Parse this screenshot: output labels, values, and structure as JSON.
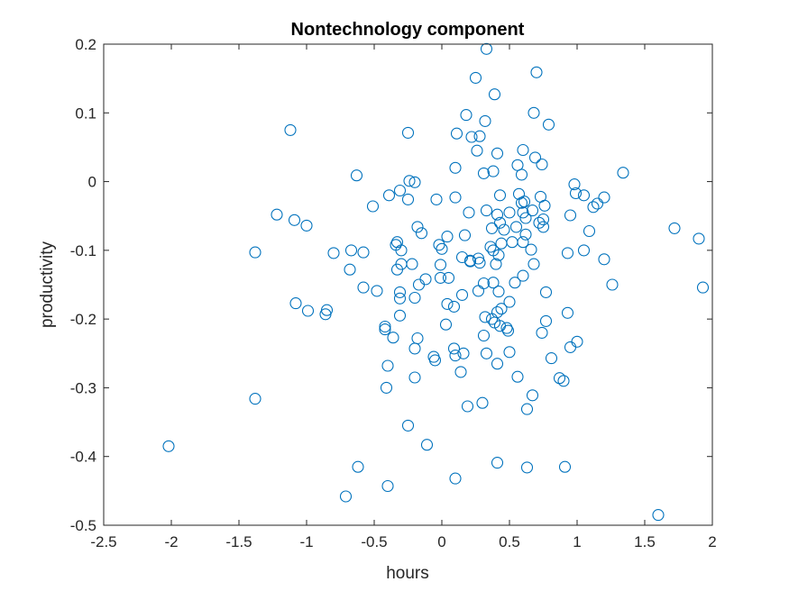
{
  "chart_data": {
    "type": "scatter",
    "title": "Nontechnology component",
    "xlabel": "hours",
    "ylabel": "productivity",
    "xlim": [
      -2.5,
      2
    ],
    "ylim": [
      -0.5,
      0.2
    ],
    "xticks": [
      "-2.5",
      "-2",
      "-1.5",
      "-1",
      "-0.5",
      "0",
      "0.5",
      "1",
      "1.5",
      "2"
    ],
    "yticks": [
      "0.2",
      "0.1",
      "0",
      "-0.1",
      "-0.2",
      "-0.3",
      "-0.4",
      "-0.5"
    ],
    "grid": false,
    "marker": "circle",
    "color": "#0072BD",
    "points": [
      [
        0.33,
        0.193
      ],
      [
        0.39,
        0.127
      ],
      [
        0.25,
        0.151
      ],
      [
        0.7,
        0.159
      ],
      [
        0.18,
        0.097
      ],
      [
        0.32,
        0.088
      ],
      [
        0.68,
        0.1
      ],
      [
        0.79,
        0.083
      ],
      [
        -1.12,
        0.075
      ],
      [
        -0.25,
        0.071
      ],
      [
        0.11,
        0.07
      ],
      [
        0.28,
        0.066
      ],
      [
        0.22,
        0.065
      ],
      [
        0.6,
        0.046
      ],
      [
        0.26,
        0.045
      ],
      [
        0.41,
        0.041
      ],
      [
        0.69,
        0.035
      ],
      [
        0.74,
        0.025
      ],
      [
        0.56,
        0.024
      ],
      [
        0.1,
        0.02
      ],
      [
        0.38,
        0.015
      ],
      [
        0.31,
        0.012
      ],
      [
        0.59,
        0.01
      ],
      [
        1.34,
        0.013
      ],
      [
        -0.63,
        0.009
      ],
      [
        0.98,
        -0.004
      ],
      [
        -0.24,
        0.001
      ],
      [
        -0.2,
        -0.001
      ],
      [
        -0.31,
        -0.013
      ],
      [
        -0.39,
        -0.02
      ],
      [
        0.43,
        -0.02
      ],
      [
        0.57,
        -0.018
      ],
      [
        0.73,
        -0.022
      ],
      [
        0.99,
        -0.017
      ],
      [
        1.05,
        -0.02
      ],
      [
        1.2,
        -0.023
      ],
      [
        -0.25,
        -0.026
      ],
      [
        -0.04,
        -0.026
      ],
      [
        0.1,
        -0.023
      ],
      [
        0.61,
        -0.029
      ],
      [
        0.59,
        -0.031
      ],
      [
        1.15,
        -0.032
      ],
      [
        1.12,
        -0.037
      ],
      [
        0.76,
        -0.035
      ],
      [
        -0.51,
        -0.036
      ],
      [
        0.33,
        -0.042
      ],
      [
        0.2,
        -0.045
      ],
      [
        0.5,
        -0.045
      ],
      [
        0.6,
        -0.045
      ],
      [
        0.67,
        -0.042
      ],
      [
        0.41,
        -0.048
      ],
      [
        0.95,
        -0.049
      ],
      [
        0.75,
        -0.055
      ],
      [
        0.62,
        -0.053
      ],
      [
        -1.22,
        -0.048
      ],
      [
        -1.09,
        -0.056
      ],
      [
        -1.0,
        -0.064
      ],
      [
        -0.18,
        -0.066
      ],
      [
        0.43,
        -0.06
      ],
      [
        0.37,
        -0.068
      ],
      [
        0.46,
        -0.07
      ],
      [
        0.55,
        -0.066
      ],
      [
        0.72,
        -0.06
      ],
      [
        0.75,
        -0.066
      ],
      [
        1.09,
        -0.072
      ],
      [
        1.72,
        -0.068
      ],
      [
        -0.15,
        -0.075
      ],
      [
        0.04,
        -0.08
      ],
      [
        0.17,
        -0.078
      ],
      [
        0.62,
        -0.077
      ],
      [
        1.9,
        -0.083
      ],
      [
        -0.33,
        -0.088
      ],
      [
        0.6,
        -0.088
      ],
      [
        0.52,
        -0.088
      ],
      [
        0.44,
        -0.09
      ],
      [
        -0.34,
        -0.092
      ],
      [
        -0.02,
        -0.092
      ],
      [
        0.36,
        -0.095
      ],
      [
        0.38,
        -0.1
      ],
      [
        -0.67,
        -0.1
      ],
      [
        -0.58,
        -0.103
      ],
      [
        -0.3,
        -0.1
      ],
      [
        0.0,
        -0.098
      ],
      [
        0.66,
        -0.099
      ],
      [
        0.93,
        -0.104
      ],
      [
        1.05,
        -0.1
      ],
      [
        -1.38,
        -0.103
      ],
      [
        -0.8,
        -0.104
      ],
      [
        0.42,
        -0.107
      ],
      [
        0.15,
        -0.11
      ],
      [
        0.27,
        -0.112
      ],
      [
        0.28,
        -0.118
      ],
      [
        -0.3,
        -0.12
      ],
      [
        -0.22,
        -0.12
      ],
      [
        0.21,
        -0.116
      ],
      [
        0.21,
        -0.115
      ],
      [
        0.68,
        -0.12
      ],
      [
        1.2,
        -0.113
      ],
      [
        -0.01,
        -0.121
      ],
      [
        -0.33,
        -0.128
      ],
      [
        -0.68,
        -0.128
      ],
      [
        0.4,
        -0.12
      ],
      [
        0.6,
        -0.137
      ],
      [
        0.05,
        -0.14
      ],
      [
        -0.01,
        -0.14
      ],
      [
        0.38,
        -0.147
      ],
      [
        -0.12,
        -0.142
      ],
      [
        0.31,
        -0.148
      ],
      [
        -0.17,
        -0.15
      ],
      [
        0.54,
        -0.147
      ],
      [
        1.26,
        -0.15
      ],
      [
        -0.58,
        -0.154
      ],
      [
        -0.48,
        -0.159
      ],
      [
        -0.31,
        -0.161
      ],
      [
        0.27,
        -0.159
      ],
      [
        0.15,
        -0.165
      ],
      [
        0.42,
        -0.16
      ],
      [
        0.77,
        -0.161
      ],
      [
        1.93,
        -0.154
      ],
      [
        -0.31,
        -0.17
      ],
      [
        -0.2,
        -0.169
      ],
      [
        0.04,
        -0.178
      ],
      [
        0.09,
        -0.182
      ],
      [
        0.44,
        -0.185
      ],
      [
        0.5,
        -0.175
      ],
      [
        -1.08,
        -0.177
      ],
      [
        -0.99,
        -0.188
      ],
      [
        -0.85,
        -0.187
      ],
      [
        -0.86,
        -0.193
      ],
      [
        -0.31,
        -0.195
      ],
      [
        0.32,
        -0.197
      ],
      [
        0.41,
        -0.19
      ],
      [
        0.93,
        -0.191
      ],
      [
        0.37,
        -0.2
      ],
      [
        0.39,
        -0.205
      ],
      [
        -0.42,
        -0.211
      ],
      [
        0.03,
        -0.208
      ],
      [
        0.43,
        -0.21
      ],
      [
        0.48,
        -0.213
      ],
      [
        0.49,
        -0.217
      ],
      [
        0.77,
        -0.203
      ],
      [
        0.74,
        -0.22
      ],
      [
        -0.42,
        -0.215
      ],
      [
        -0.36,
        -0.227
      ],
      [
        -0.18,
        -0.228
      ],
      [
        0.31,
        -0.224
      ],
      [
        -0.2,
        -0.243
      ],
      [
        0.09,
        -0.243
      ],
      [
        0.16,
        -0.25
      ],
      [
        0.5,
        -0.248
      ],
      [
        0.95,
        -0.241
      ],
      [
        0.33,
        -0.25
      ],
      [
        1.0,
        -0.233
      ],
      [
        0.1,
        -0.253
      ],
      [
        -0.06,
        -0.255
      ],
      [
        -0.05,
        -0.26
      ],
      [
        0.81,
        -0.257
      ],
      [
        0.41,
        -0.265
      ],
      [
        -0.4,
        -0.268
      ],
      [
        0.14,
        -0.277
      ],
      [
        0.56,
        -0.284
      ],
      [
        0.87,
        -0.286
      ],
      [
        -0.2,
        -0.285
      ],
      [
        0.9,
        -0.29
      ],
      [
        -0.41,
        -0.3
      ],
      [
        0.67,
        -0.311
      ],
      [
        -1.38,
        -0.316
      ],
      [
        0.19,
        -0.327
      ],
      [
        0.3,
        -0.322
      ],
      [
        0.63,
        -0.331
      ],
      [
        -0.25,
        -0.355
      ],
      [
        -0.11,
        -0.383
      ],
      [
        -2.02,
        -0.385
      ],
      [
        0.41,
        -0.409
      ],
      [
        -0.62,
        -0.415
      ],
      [
        0.63,
        -0.416
      ],
      [
        0.91,
        -0.415
      ],
      [
        0.1,
        -0.432
      ],
      [
        -0.4,
        -0.443
      ],
      [
        -0.71,
        -0.458
      ],
      [
        1.6,
        -0.485
      ]
    ]
  }
}
